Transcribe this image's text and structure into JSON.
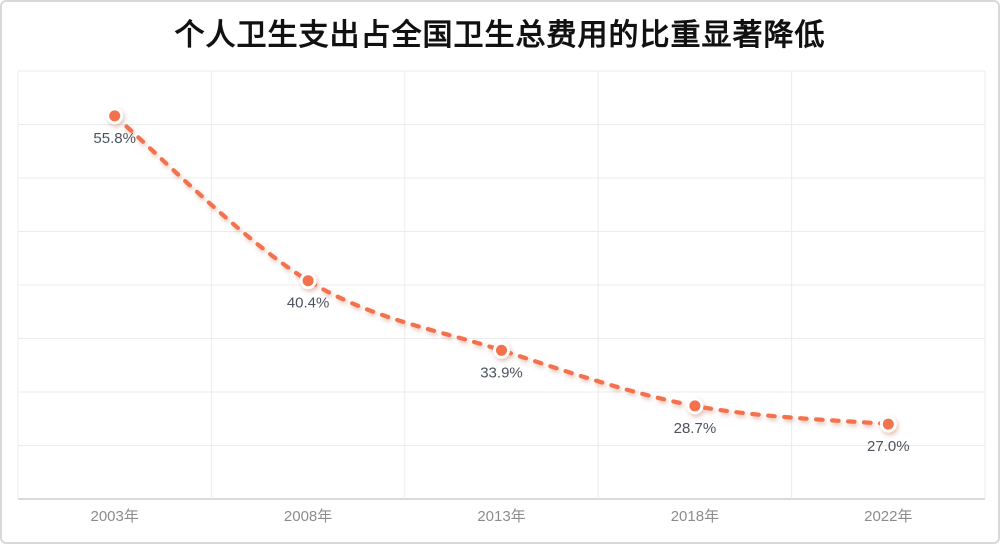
{
  "chart_data": {
    "type": "line",
    "title": "个人卫生支出占全国卫生总费用的比重显著降低",
    "categories": [
      "2003年",
      "2008年",
      "2013年",
      "2018年",
      "2022年"
    ],
    "values": [
      55.8,
      40.4,
      33.9,
      28.7,
      27.0
    ],
    "point_labels": [
      "55.8%",
      "40.4%",
      "33.9%",
      "28.7%",
      "27.0%"
    ],
    "xlabel": "",
    "ylabel": "",
    "ylim": [
      20,
      60
    ],
    "y_step": 5,
    "grid": true,
    "legend_position": "none",
    "line": {
      "style": "dashed",
      "smooth": true,
      "color": "#F3714D",
      "width": 4.2
    },
    "marker": {
      "fill": "#F3714D",
      "ring": "#FFFFFF"
    },
    "colors": {
      "title": "#111111",
      "data_label": "#4D525C",
      "axis_label": "#8C8C8C",
      "gridline": "#ECECEC",
      "axis_line": "#CDCDCD",
      "border": "#D9D9D9",
      "background": "#FFFFFF"
    }
  }
}
